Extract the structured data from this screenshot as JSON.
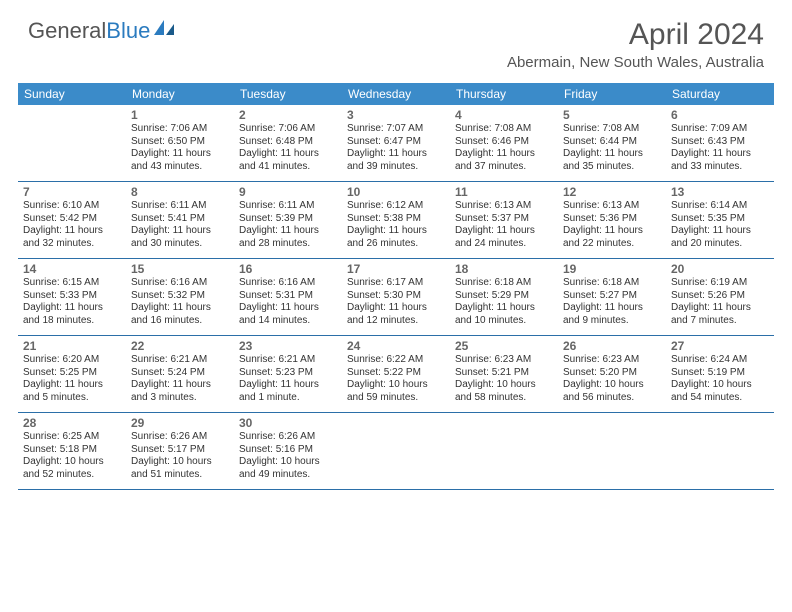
{
  "logo": {
    "text1": "General",
    "text2": "Blue"
  },
  "title": "April 2024",
  "location": "Abermain, New South Wales, Australia",
  "colors": {
    "header_bg": "#3b8bc9",
    "header_text": "#ffffff",
    "border": "#2b6fa8",
    "body_text": "#333333",
    "title_text": "#555555"
  },
  "daynames": [
    "Sunday",
    "Monday",
    "Tuesday",
    "Wednesday",
    "Thursday",
    "Friday",
    "Saturday"
  ],
  "weeks": [
    [
      {
        "n": "",
        "sr": "",
        "ss": "",
        "dl1": "",
        "dl2": ""
      },
      {
        "n": "1",
        "sr": "Sunrise: 7:06 AM",
        "ss": "Sunset: 6:50 PM",
        "dl1": "Daylight: 11 hours",
        "dl2": "and 43 minutes."
      },
      {
        "n": "2",
        "sr": "Sunrise: 7:06 AM",
        "ss": "Sunset: 6:48 PM",
        "dl1": "Daylight: 11 hours",
        "dl2": "and 41 minutes."
      },
      {
        "n": "3",
        "sr": "Sunrise: 7:07 AM",
        "ss": "Sunset: 6:47 PM",
        "dl1": "Daylight: 11 hours",
        "dl2": "and 39 minutes."
      },
      {
        "n": "4",
        "sr": "Sunrise: 7:08 AM",
        "ss": "Sunset: 6:46 PM",
        "dl1": "Daylight: 11 hours",
        "dl2": "and 37 minutes."
      },
      {
        "n": "5",
        "sr": "Sunrise: 7:08 AM",
        "ss": "Sunset: 6:44 PM",
        "dl1": "Daylight: 11 hours",
        "dl2": "and 35 minutes."
      },
      {
        "n": "6",
        "sr": "Sunrise: 7:09 AM",
        "ss": "Sunset: 6:43 PM",
        "dl1": "Daylight: 11 hours",
        "dl2": "and 33 minutes."
      }
    ],
    [
      {
        "n": "7",
        "sr": "Sunrise: 6:10 AM",
        "ss": "Sunset: 5:42 PM",
        "dl1": "Daylight: 11 hours",
        "dl2": "and 32 minutes."
      },
      {
        "n": "8",
        "sr": "Sunrise: 6:11 AM",
        "ss": "Sunset: 5:41 PM",
        "dl1": "Daylight: 11 hours",
        "dl2": "and 30 minutes."
      },
      {
        "n": "9",
        "sr": "Sunrise: 6:11 AM",
        "ss": "Sunset: 5:39 PM",
        "dl1": "Daylight: 11 hours",
        "dl2": "and 28 minutes."
      },
      {
        "n": "10",
        "sr": "Sunrise: 6:12 AM",
        "ss": "Sunset: 5:38 PM",
        "dl1": "Daylight: 11 hours",
        "dl2": "and 26 minutes."
      },
      {
        "n": "11",
        "sr": "Sunrise: 6:13 AM",
        "ss": "Sunset: 5:37 PM",
        "dl1": "Daylight: 11 hours",
        "dl2": "and 24 minutes."
      },
      {
        "n": "12",
        "sr": "Sunrise: 6:13 AM",
        "ss": "Sunset: 5:36 PM",
        "dl1": "Daylight: 11 hours",
        "dl2": "and 22 minutes."
      },
      {
        "n": "13",
        "sr": "Sunrise: 6:14 AM",
        "ss": "Sunset: 5:35 PM",
        "dl1": "Daylight: 11 hours",
        "dl2": "and 20 minutes."
      }
    ],
    [
      {
        "n": "14",
        "sr": "Sunrise: 6:15 AM",
        "ss": "Sunset: 5:33 PM",
        "dl1": "Daylight: 11 hours",
        "dl2": "and 18 minutes."
      },
      {
        "n": "15",
        "sr": "Sunrise: 6:16 AM",
        "ss": "Sunset: 5:32 PM",
        "dl1": "Daylight: 11 hours",
        "dl2": "and 16 minutes."
      },
      {
        "n": "16",
        "sr": "Sunrise: 6:16 AM",
        "ss": "Sunset: 5:31 PM",
        "dl1": "Daylight: 11 hours",
        "dl2": "and 14 minutes."
      },
      {
        "n": "17",
        "sr": "Sunrise: 6:17 AM",
        "ss": "Sunset: 5:30 PM",
        "dl1": "Daylight: 11 hours",
        "dl2": "and 12 minutes."
      },
      {
        "n": "18",
        "sr": "Sunrise: 6:18 AM",
        "ss": "Sunset: 5:29 PM",
        "dl1": "Daylight: 11 hours",
        "dl2": "and 10 minutes."
      },
      {
        "n": "19",
        "sr": "Sunrise: 6:18 AM",
        "ss": "Sunset: 5:27 PM",
        "dl1": "Daylight: 11 hours",
        "dl2": "and 9 minutes."
      },
      {
        "n": "20",
        "sr": "Sunrise: 6:19 AM",
        "ss": "Sunset: 5:26 PM",
        "dl1": "Daylight: 11 hours",
        "dl2": "and 7 minutes."
      }
    ],
    [
      {
        "n": "21",
        "sr": "Sunrise: 6:20 AM",
        "ss": "Sunset: 5:25 PM",
        "dl1": "Daylight: 11 hours",
        "dl2": "and 5 minutes."
      },
      {
        "n": "22",
        "sr": "Sunrise: 6:21 AM",
        "ss": "Sunset: 5:24 PM",
        "dl1": "Daylight: 11 hours",
        "dl2": "and 3 minutes."
      },
      {
        "n": "23",
        "sr": "Sunrise: 6:21 AM",
        "ss": "Sunset: 5:23 PM",
        "dl1": "Daylight: 11 hours",
        "dl2": "and 1 minute."
      },
      {
        "n": "24",
        "sr": "Sunrise: 6:22 AM",
        "ss": "Sunset: 5:22 PM",
        "dl1": "Daylight: 10 hours",
        "dl2": "and 59 minutes."
      },
      {
        "n": "25",
        "sr": "Sunrise: 6:23 AM",
        "ss": "Sunset: 5:21 PM",
        "dl1": "Daylight: 10 hours",
        "dl2": "and 58 minutes."
      },
      {
        "n": "26",
        "sr": "Sunrise: 6:23 AM",
        "ss": "Sunset: 5:20 PM",
        "dl1": "Daylight: 10 hours",
        "dl2": "and 56 minutes."
      },
      {
        "n": "27",
        "sr": "Sunrise: 6:24 AM",
        "ss": "Sunset: 5:19 PM",
        "dl1": "Daylight: 10 hours",
        "dl2": "and 54 minutes."
      }
    ],
    [
      {
        "n": "28",
        "sr": "Sunrise: 6:25 AM",
        "ss": "Sunset: 5:18 PM",
        "dl1": "Daylight: 10 hours",
        "dl2": "and 52 minutes."
      },
      {
        "n": "29",
        "sr": "Sunrise: 6:26 AM",
        "ss": "Sunset: 5:17 PM",
        "dl1": "Daylight: 10 hours",
        "dl2": "and 51 minutes."
      },
      {
        "n": "30",
        "sr": "Sunrise: 6:26 AM",
        "ss": "Sunset: 5:16 PM",
        "dl1": "Daylight: 10 hours",
        "dl2": "and 49 minutes."
      },
      {
        "n": "",
        "sr": "",
        "ss": "",
        "dl1": "",
        "dl2": ""
      },
      {
        "n": "",
        "sr": "",
        "ss": "",
        "dl1": "",
        "dl2": ""
      },
      {
        "n": "",
        "sr": "",
        "ss": "",
        "dl1": "",
        "dl2": ""
      },
      {
        "n": "",
        "sr": "",
        "ss": "",
        "dl1": "",
        "dl2": ""
      }
    ]
  ]
}
